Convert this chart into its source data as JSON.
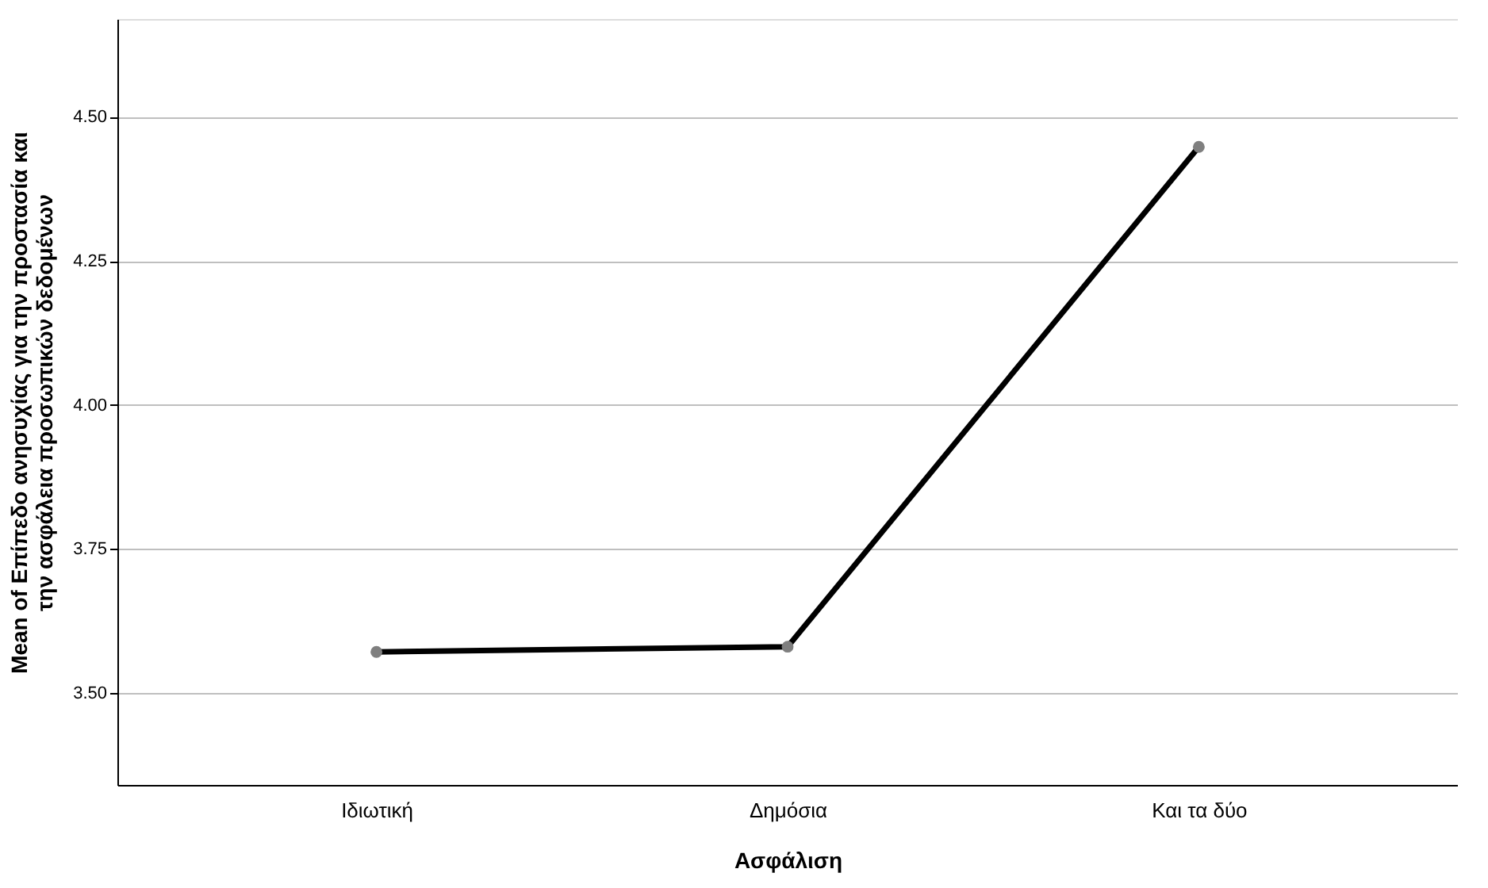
{
  "chart_data": {
    "type": "line",
    "xlabel": "Ασφάλιση",
    "ylabel": "Mean of Επίπεδο ανησυχίας για την προστασία και\nτην ασφάλεια προσωπικών δεδομένων",
    "categories": [
      "Ιδιωτική",
      "Δημόσια",
      "Και τα δύο"
    ],
    "series": [
      {
        "color": "#000000",
        "values": [
          3.571,
          3.58,
          4.448
        ]
      }
    ],
    "ylim": [
      3.34,
      4.67
    ],
    "yticks": [
      {
        "value": 3.5,
        "label": "3.50"
      },
      {
        "value": 3.75,
        "label": "3.75"
      },
      {
        "value": 4.0,
        "label": "4.00"
      },
      {
        "value": 4.25,
        "label": "4.25"
      },
      {
        "value": 4.5,
        "label": "4.50"
      }
    ],
    "grid": "y",
    "marker": "circle",
    "line_style": "solid"
  }
}
